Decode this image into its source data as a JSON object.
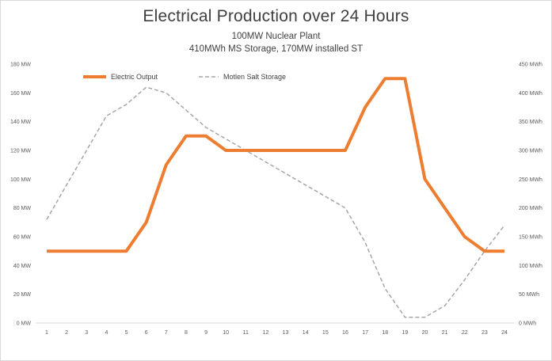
{
  "chart_data": {
    "type": "line",
    "title": "Electrical Production over 24 Hours",
    "subtitle_lines": [
      "100MW Nuclear Plant",
      "410MWh MS Storage, 170MW installed ST"
    ],
    "x": [
      1,
      2,
      3,
      4,
      5,
      6,
      7,
      8,
      9,
      10,
      11,
      12,
      13,
      14,
      15,
      16,
      17,
      18,
      19,
      20,
      21,
      22,
      23,
      24
    ],
    "x_tick_labels": [
      "1",
      "2",
      "3",
      "4",
      "5",
      "6",
      "7",
      "8",
      "9",
      "10",
      "11",
      "12",
      "13",
      "14",
      "15",
      "16",
      "17",
      "18",
      "19",
      "20",
      "21",
      "22",
      "23",
      "24"
    ],
    "left_axis": {
      "ylim": [
        0,
        180
      ],
      "ticks": [
        0,
        20,
        40,
        60,
        80,
        100,
        120,
        140,
        160,
        180
      ],
      "tick_labels": [
        "0 MW",
        "20 MW",
        "40 MW",
        "60 MW",
        "80 MW",
        "100 MW",
        "120 MW",
        "140 MW",
        "160 MW",
        "180 MW"
      ]
    },
    "right_axis": {
      "ylim": [
        0,
        450
      ],
      "ticks": [
        0,
        50,
        100,
        150,
        200,
        250,
        300,
        350,
        400,
        450
      ],
      "tick_labels": [
        "0 MWh",
        "50 MWh",
        "100 MWh",
        "150 MWh",
        "200 MWh",
        "250 MWh",
        "300 MWh",
        "350 MWh",
        "400 MWh",
        "450 MWh"
      ]
    },
    "series": [
      {
        "name": "Electric Output",
        "axis": "left",
        "color": "#ED7D31",
        "style": "solid",
        "values": [
          50,
          50,
          50,
          50,
          50,
          70,
          110,
          130,
          130,
          120,
          120,
          120,
          120,
          120,
          120,
          120,
          150,
          170,
          170,
          100,
          80,
          60,
          50,
          50
        ]
      },
      {
        "name": "Motlen Salt Storage",
        "axis": "right",
        "color": "#A6A6A6",
        "style": "dashed",
        "values": [
          180,
          240,
          300,
          360,
          380,
          410,
          400,
          370,
          340,
          320,
          300,
          280,
          260,
          240,
          220,
          200,
          140,
          60,
          10,
          10,
          30,
          75,
          125,
          170
        ]
      }
    ],
    "legend_position": "top-left",
    "grid": false
  }
}
